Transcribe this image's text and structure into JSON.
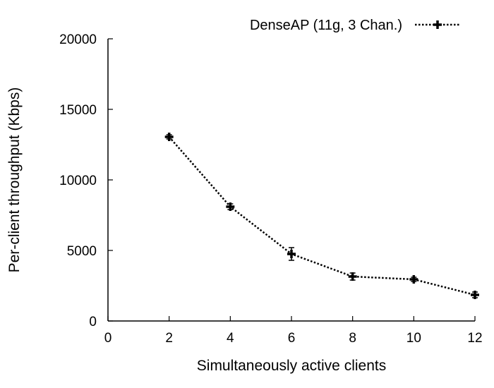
{
  "chart_data": {
    "type": "line",
    "title": "",
    "xlabel": "Simultaneously active clients",
    "ylabel": "Per-client throughput (Kbps)",
    "xlim": [
      0,
      12
    ],
    "ylim": [
      0,
      20000
    ],
    "x_ticks": [
      "0",
      "2",
      "4",
      "6",
      "8",
      "10",
      "12"
    ],
    "y_ticks": [
      "0",
      "5000",
      "10000",
      "15000",
      "20000"
    ],
    "grid": false,
    "legend_position": "top-right",
    "series": [
      {
        "name": "DenseAP (11g, 3 Chan.)",
        "color": "#000000",
        "line_style": "dotted",
        "marker": "plus",
        "x": [
          2,
          4,
          6,
          8,
          10,
          12
        ],
        "y": [
          13050,
          8100,
          4750,
          3150,
          2950,
          1850
        ],
        "error": [
          150,
          200,
          450,
          250,
          150,
          200
        ]
      }
    ]
  }
}
